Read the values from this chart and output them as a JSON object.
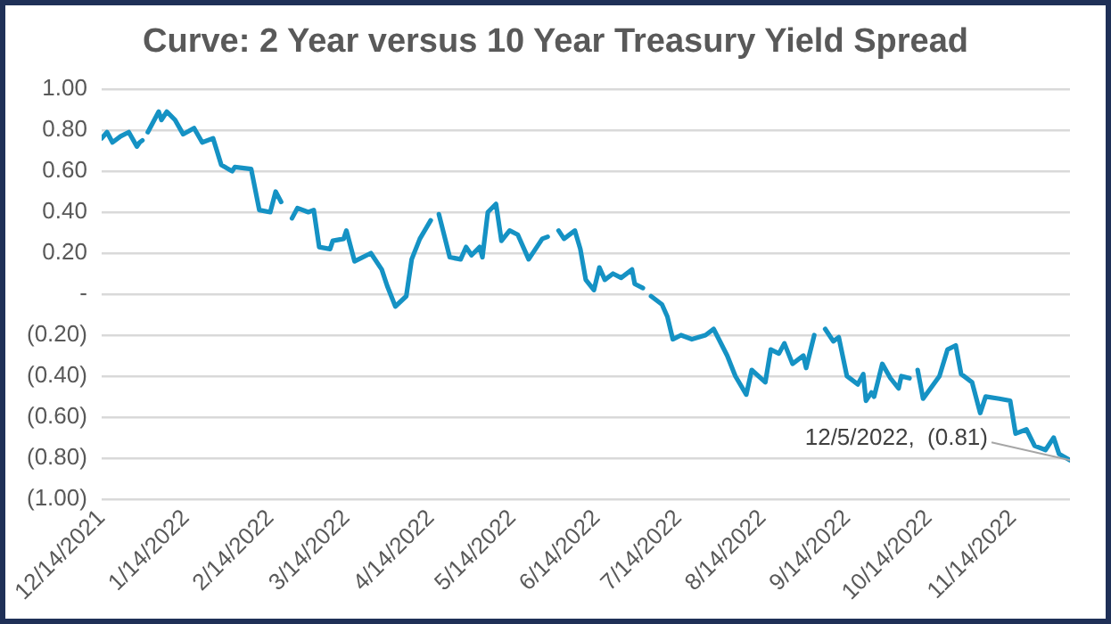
{
  "chart_data": {
    "type": "line",
    "title": "Curve: 2 Year versus 10 Year Treasury Yield Spread",
    "x": [
      "2021-12-14",
      "2021-12-16",
      "2021-12-18",
      "2021-12-21",
      "2021-12-24",
      "2021-12-27",
      "2021-12-28",
      "2021-12-29",
      "2021-12-30",
      "2021-12-31",
      "2022-01-04",
      "2022-01-05",
      "2022-01-07",
      "2022-01-10",
      "2022-01-13",
      "2022-01-17",
      "2022-01-20",
      "2022-01-24",
      "2022-01-27",
      "2022-01-31",
      "2022-02-01",
      "2022-02-07",
      "2022-02-10",
      "2022-02-14",
      "2022-02-16",
      "2022-02-18",
      "2022-02-20",
      "2022-02-22",
      "2022-02-24",
      "2022-02-28",
      "2022-03-02",
      "2022-03-04",
      "2022-03-08",
      "2022-03-09",
      "2022-03-13",
      "2022-03-14",
      "2022-03-17",
      "2022-03-23",
      "2022-03-27",
      "2022-03-29",
      "2022-04-01",
      "2022-04-05",
      "2022-04-07",
      "2022-04-10",
      "2022-04-14",
      "2022-04-15",
      "2022-04-17",
      "2022-04-21",
      "2022-04-25",
      "2022-04-27",
      "2022-04-29",
      "2022-05-02",
      "2022-05-03",
      "2022-05-05",
      "2022-05-08",
      "2022-05-10",
      "2022-05-13",
      "2022-05-16",
      "2022-05-20",
      "2022-05-25",
      "2022-05-27",
      "2022-05-29",
      "2022-05-31",
      "2022-06-02",
      "2022-06-06",
      "2022-06-08",
      "2022-06-10",
      "2022-06-13",
      "2022-06-15",
      "2022-06-17",
      "2022-06-20",
      "2022-06-23",
      "2022-06-27",
      "2022-06-28",
      "2022-07-01",
      "2022-07-02",
      "2022-07-04",
      "2022-07-08",
      "2022-07-10",
      "2022-07-12",
      "2022-07-15",
      "2022-07-19",
      "2022-07-24",
      "2022-07-27",
      "2022-08-01",
      "2022-08-04",
      "2022-08-08",
      "2022-08-10",
      "2022-08-15",
      "2022-08-17",
      "2022-08-20",
      "2022-08-22",
      "2022-08-25",
      "2022-08-29",
      "2022-08-30",
      "2022-09-02",
      "2022-09-04",
      "2022-09-06",
      "2022-09-09",
      "2022-09-11",
      "2022-09-14",
      "2022-09-18",
      "2022-09-20",
      "2022-09-21",
      "2022-09-23",
      "2022-09-24",
      "2022-09-27",
      "2022-09-30",
      "2022-10-03",
      "2022-10-04",
      "2022-10-07",
      "2022-10-08",
      "2022-10-10",
      "2022-10-12",
      "2022-10-18",
      "2022-10-21",
      "2022-10-24",
      "2022-10-26",
      "2022-10-30",
      "2022-11-02",
      "2022-11-04",
      "2022-11-09",
      "2022-11-13",
      "2022-11-15",
      "2022-11-19",
      "2022-11-22",
      "2022-11-26",
      "2022-11-29",
      "2022-12-01",
      "2022-12-05"
    ],
    "series": [
      {
        "color": "#1592c4",
        "values": [
          0.76,
          0.79,
          0.74,
          0.77,
          0.79,
          0.72,
          0.74,
          0.75,
          null,
          0.79,
          0.89,
          0.85,
          0.89,
          0.85,
          0.78,
          0.81,
          0.74,
          0.76,
          0.63,
          0.6,
          0.62,
          0.61,
          0.41,
          0.4,
          0.5,
          0.45,
          null,
          0.37,
          0.42,
          0.4,
          0.41,
          0.23,
          0.22,
          0.26,
          0.27,
          0.31,
          0.16,
          0.2,
          0.12,
          0.04,
          -0.06,
          -0.01,
          0.17,
          0.27,
          0.36,
          null,
          0.39,
          0.18,
          0.17,
          0.23,
          0.19,
          0.23,
          0.18,
          0.4,
          0.44,
          0.26,
          0.31,
          0.29,
          0.17,
          0.27,
          0.28,
          null,
          0.31,
          0.27,
          0.31,
          0.22,
          0.07,
          0.02,
          0.13,
          0.07,
          0.1,
          0.08,
          0.12,
          0.05,
          0.03,
          null,
          -0.01,
          -0.05,
          -0.11,
          -0.22,
          -0.2,
          -0.22,
          -0.2,
          -0.17,
          -0.3,
          -0.4,
          -0.49,
          -0.37,
          -0.43,
          -0.27,
          -0.29,
          -0.24,
          -0.34,
          -0.3,
          -0.36,
          -0.2,
          null,
          -0.17,
          -0.23,
          -0.21,
          -0.4,
          -0.44,
          -0.39,
          -0.52,
          -0.48,
          -0.5,
          -0.34,
          -0.41,
          -0.46,
          -0.4,
          -0.41,
          null,
          -0.37,
          -0.51,
          -0.4,
          -0.27,
          -0.25,
          -0.39,
          -0.43,
          -0.58,
          -0.5,
          -0.51,
          -0.52,
          -0.68,
          -0.66,
          -0.74,
          -0.76,
          -0.7,
          -0.78,
          -0.81
        ]
      }
    ],
    "xlim": [
      "2021-12-14",
      "2022-12-05"
    ],
    "xticks": [
      {
        "value": "2021-12-14",
        "label": "12/14/2021"
      },
      {
        "value": "2022-01-14",
        "label": "1/14/2022"
      },
      {
        "value": "2022-02-14",
        "label": "2/14/2022"
      },
      {
        "value": "2022-03-14",
        "label": "3/14/2022"
      },
      {
        "value": "2022-04-14",
        "label": "4/14/2022"
      },
      {
        "value": "2022-05-14",
        "label": "5/14/2022"
      },
      {
        "value": "2022-06-14",
        "label": "6/14/2022"
      },
      {
        "value": "2022-07-14",
        "label": "7/14/2022"
      },
      {
        "value": "2022-08-14",
        "label": "8/14/2022"
      },
      {
        "value": "2022-09-14",
        "label": "9/14/2022"
      },
      {
        "value": "2022-10-14",
        "label": "10/14/2022"
      },
      {
        "value": "2022-11-14",
        "label": "11/14/2022"
      }
    ],
    "ylim": [
      -1,
      1
    ],
    "yticks": [
      {
        "value": 1,
        "label": "1.00"
      },
      {
        "value": 0.8,
        "label": "0.80"
      },
      {
        "value": 0.6,
        "label": "0.60"
      },
      {
        "value": 0.4,
        "label": "0.40"
      },
      {
        "value": 0.2,
        "label": "0.20"
      },
      {
        "value": 0,
        "label": "-"
      },
      {
        "value": -0.2,
        "label": "(0.20)"
      },
      {
        "value": -0.4,
        "label": "(0.40)"
      },
      {
        "value": -0.6,
        "label": "(0.60)"
      },
      {
        "value": -0.8,
        "label": "(0.80)"
      },
      {
        "value": -1,
        "label": "(1.00)"
      }
    ],
    "annotations": [
      {
        "text": "12/5/2022,  (0.81)",
        "x": "2022-12-05",
        "y": -0.81
      }
    ],
    "grid": "y",
    "legend": false,
    "marker": "none",
    "line_style": "solid"
  }
}
